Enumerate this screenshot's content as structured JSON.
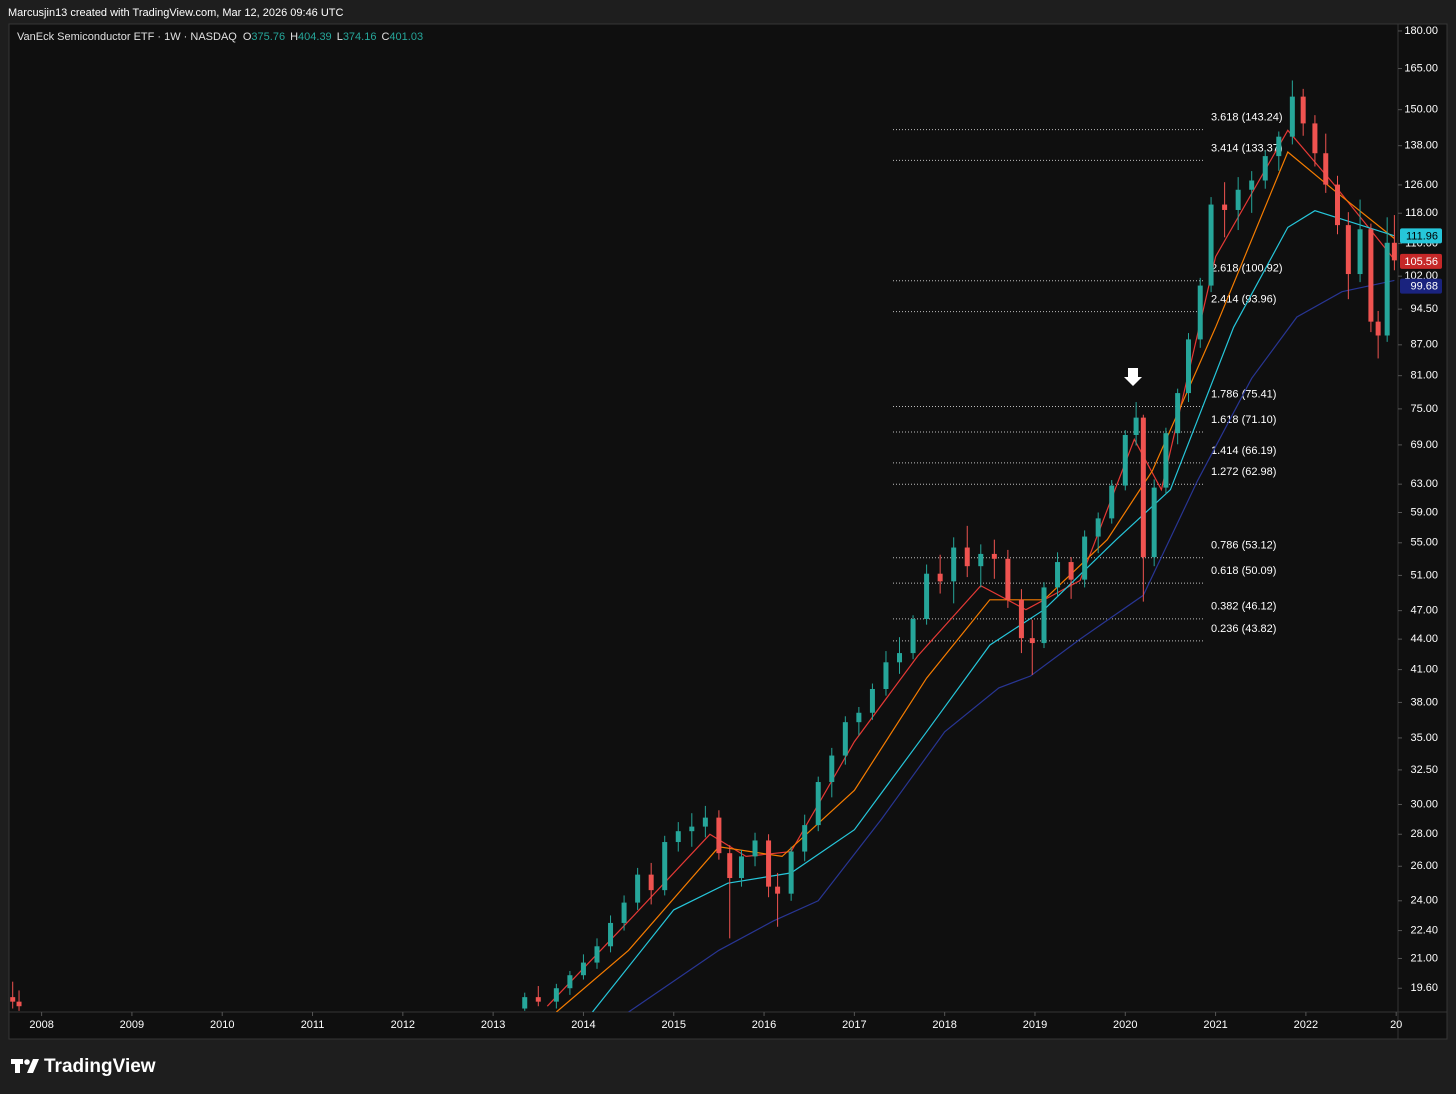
{
  "header": {
    "attribution": "Marcusjin13 created with TradingView.com, Mar 12, 2026 09:46 UTC"
  },
  "legend": {
    "symbol": "VanEck Semiconductor ETF · 1W · NASDAQ",
    "ohlc": [
      {
        "key": "O",
        "value": 375.76
      },
      {
        "key": "H",
        "value": 404.39
      },
      {
        "key": "L",
        "value": 374.16
      },
      {
        "key": "C",
        "value": 401.03
      }
    ]
  },
  "footer": {
    "brand": "TradingView"
  },
  "chart_data": {
    "type": "candlestick",
    "up_color": "#26a69a",
    "down_color": "#ef5350",
    "log_scale": true,
    "xlim": [
      2007.65,
      2023.02
    ],
    "ylim": [
      18.55,
      182.5
    ],
    "xticks": [
      2008,
      2009,
      2010,
      2011,
      2012,
      2013,
      2014,
      2015,
      2016,
      2017,
      2018,
      2019,
      2020,
      2021,
      2022,
      {
        "value": 2023,
        "label": "20"
      }
    ],
    "yticks": [
      {
        "value": 180,
        "label": "180.00"
      },
      {
        "value": 165,
        "label": "165.00"
      },
      {
        "value": 150,
        "label": "150.00"
      },
      {
        "value": 138,
        "label": "138.00"
      },
      {
        "value": 126,
        "label": "126.00"
      },
      {
        "value": 118,
        "label": "118.00"
      },
      {
        "value": 110,
        "label": "110.00"
      },
      {
        "value": 102,
        "label": "102.00"
      },
      {
        "value": 94.5,
        "label": "94.50"
      },
      {
        "value": 87,
        "label": "87.00"
      },
      {
        "value": 81,
        "label": "81.00"
      },
      {
        "value": 75,
        "label": "75.00"
      },
      {
        "value": 69,
        "label": "69.00"
      },
      {
        "value": 63,
        "label": "63.00"
      },
      {
        "value": 59,
        "label": "59.00"
      },
      {
        "value": 55,
        "label": "55.00"
      },
      {
        "value": 51,
        "label": "51.00"
      },
      {
        "value": 47,
        "label": "47.00"
      },
      {
        "value": 44,
        "label": "44.00"
      },
      {
        "value": 41,
        "label": "41.00"
      },
      {
        "value": 38,
        "label": "38.00"
      },
      {
        "value": 35,
        "label": "35.00"
      },
      {
        "value": 32.5,
        "label": "32.50"
      },
      {
        "value": 30,
        "label": "30.00"
      },
      {
        "value": 28,
        "label": "28.00"
      },
      {
        "value": 26,
        "label": "26.00"
      },
      {
        "value": 24,
        "label": "24.00"
      },
      {
        "value": 22.4,
        "label": "22.40"
      },
      {
        "value": 21,
        "label": "21.00"
      },
      {
        "value": 19.6,
        "label": "19.60"
      }
    ],
    "x": [
      2007.68,
      2007.75,
      2013.35,
      2013.5,
      2013.7,
      2013.85,
      2014.0,
      2014.15,
      2014.3,
      2014.45,
      2014.6,
      2014.75,
      2014.9,
      2015.05,
      2015.2,
      2015.35,
      2015.5,
      2015.62,
      2015.75,
      2015.9,
      2016.05,
      2016.15,
      2016.3,
      2016.45,
      2016.6,
      2016.75,
      2016.9,
      2017.05,
      2017.2,
      2017.35,
      2017.5,
      2017.65,
      2017.8,
      2017.95,
      2018.1,
      2018.25,
      2018.4,
      2018.55,
      2018.7,
      2018.85,
      2018.97,
      2019.1,
      2019.25,
      2019.4,
      2019.55,
      2019.7,
      2019.85,
      2020.0,
      2020.12,
      2020.2,
      2020.32,
      2020.45,
      2020.58,
      2020.7,
      2020.83,
      2020.95,
      2021.1,
      2021.25,
      2021.4,
      2021.55,
      2021.7,
      2021.85,
      2021.97,
      2022.1,
      2022.22,
      2022.35,
      2022.47,
      2022.6,
      2022.72,
      2022.8,
      2022.9,
      2022.98
    ],
    "open": [
      19.2,
      19.0,
      18.7,
      19.2,
      19.0,
      19.6,
      20.2,
      20.8,
      21.6,
      22.8,
      23.9,
      25.5,
      24.6,
      27.5,
      28.2,
      28.5,
      29.1,
      26.8,
      25.3,
      26.6,
      27.6,
      24.8,
      24.4,
      26.9,
      28.6,
      31.6,
      33.6,
      36.3,
      37.1,
      39.2,
      41.7,
      42.6,
      46.1,
      51.2,
      50.3,
      54.4,
      52.1,
      53.6,
      53.0,
      48.2,
      44.1,
      43.6,
      49.6,
      52.6,
      50.5,
      55.8,
      58.2,
      62.8,
      70.6,
      73.5,
      53.2,
      62.5,
      70.9,
      77.8,
      88.1,
      99.8,
      120.4,
      118.9,
      124.6,
      127.3,
      134.7,
      140.9,
      154.6,
      145.3,
      135.6,
      126.1,
      114.8,
      102.5,
      113.7,
      91.8,
      88.9,
      110.2
    ],
    "high": [
      19.9,
      19.5,
      19.4,
      19.7,
      19.8,
      20.4,
      21.2,
      22.0,
      23.2,
      24.3,
      25.9,
      26.2,
      27.9,
      28.8,
      29.4,
      29.9,
      29.6,
      27.3,
      27.0,
      28.1,
      28.0,
      25.6,
      27.2,
      29.3,
      32.0,
      34.2,
      36.8,
      37.6,
      39.7,
      42.8,
      44.2,
      46.5,
      52.3,
      53.5,
      55.7,
      57.2,
      54.8,
      55.4,
      54.1,
      49.4,
      46.0,
      50.2,
      53.8,
      53.2,
      56.6,
      59.0,
      63.6,
      71.4,
      76.2,
      74.0,
      63.7,
      71.8,
      78.6,
      89.4,
      101.6,
      122.5,
      126.8,
      128.3,
      130.1,
      136.5,
      142.6,
      160.5,
      157.4,
      148.1,
      141.9,
      128.7,
      118.3,
      121.8,
      115.2,
      94.1,
      116.9,
      117.5
    ],
    "low": [
      18.7,
      18.6,
      18.6,
      18.8,
      18.7,
      19.3,
      20.0,
      20.5,
      21.3,
      22.4,
      23.5,
      23.8,
      24.3,
      26.9,
      27.2,
      27.8,
      26.4,
      22.0,
      24.8,
      26.0,
      24.2,
      22.6,
      24.0,
      26.3,
      28.2,
      30.5,
      32.9,
      35.2,
      36.5,
      38.6,
      40.6,
      42.0,
      45.5,
      48.9,
      47.8,
      50.8,
      49.6,
      50.6,
      47.3,
      42.6,
      40.5,
      43.1,
      48.6,
      48.3,
      49.6,
      53.7,
      57.5,
      62.1,
      68.9,
      48.0,
      52.1,
      61.6,
      69.1,
      76.2,
      86.4,
      98.3,
      111.6,
      113.5,
      118.1,
      124.9,
      130.2,
      138.4,
      141.2,
      131.5,
      123.7,
      112.4,
      96.7,
      100.6,
      89.6,
      84.3,
      87.6,
      103.4
    ],
    "close": [
      19.0,
      18.8,
      19.2,
      19.0,
      19.6,
      20.2,
      20.8,
      21.6,
      22.8,
      23.9,
      25.5,
      24.6,
      27.5,
      28.2,
      28.5,
      29.1,
      26.8,
      25.3,
      26.6,
      27.6,
      24.8,
      24.4,
      26.9,
      28.6,
      31.6,
      33.6,
      36.3,
      37.1,
      39.2,
      41.7,
      42.6,
      46.1,
      51.2,
      50.3,
      54.4,
      52.1,
      53.6,
      53.0,
      48.2,
      44.1,
      43.6,
      49.6,
      52.6,
      50.5,
      55.8,
      58.2,
      62.8,
      70.6,
      73.5,
      53.2,
      62.5,
      70.9,
      77.8,
      88.1,
      99.8,
      120.4,
      118.9,
      124.6,
      127.3,
      134.7,
      140.9,
      154.6,
      145.3,
      135.6,
      126.1,
      114.8,
      102.5,
      113.7,
      91.8,
      88.9,
      110.2,
      105.8
    ],
    "ma_lines": [
      {
        "color": "#e53935",
        "x": [
          2013.6,
          2014.5,
          2015.4,
          2015.8,
          2016.3,
          2017.0,
          2017.7,
          2018.4,
          2018.9,
          2019.5,
          2020.1,
          2020.4,
          2021.0,
          2021.8,
          2022.3,
          2022.98
        ],
        "values": [
          18.8,
          22.9,
          28,
          26.6,
          26.9,
          34.7,
          42.3,
          49.8,
          47.1,
          50.4,
          69.9,
          62.2,
          106.7,
          143,
          126.5,
          106
        ]
      },
      {
        "color": "#f57c00",
        "x": [
          2013.7,
          2014.5,
          2015.5,
          2016.2,
          2017.0,
          2017.8,
          2018.5,
          2019.1,
          2019.8,
          2020.3,
          2021.0,
          2021.8,
          2022.3,
          2022.98
        ],
        "values": [
          18.55,
          21.4,
          27.2,
          26.6,
          31,
          40.2,
          48.2,
          48.2,
          55.4,
          65,
          90.6,
          136,
          124.7,
          111.3
        ]
      },
      {
        "color": "#26c6da",
        "x": [
          2014.1,
          2015.0,
          2015.6,
          2016.3,
          2017.0,
          2017.8,
          2018.5,
          2019.1,
          2019.9,
          2020.5,
          2021.2,
          2021.8,
          2022.1,
          2022.5,
          2022.98
        ],
        "values": [
          18.55,
          23.5,
          25,
          25.6,
          28.3,
          35.5,
          43.4,
          47.1,
          55.4,
          62.2,
          90.6,
          114.2,
          118.7,
          115.6,
          112
        ]
      },
      {
        "color": "#283593",
        "x": [
          2014.5,
          2015.5,
          2016.1,
          2016.6,
          2017.3,
          2018.0,
          2018.6,
          2018.95,
          2019.5,
          2020.2,
          2020.8,
          2021.4,
          2021.9,
          2022.4,
          2022.98
        ],
        "values": [
          18.55,
          21.4,
          22.9,
          24,
          29,
          35.5,
          39.3,
          40.4,
          44,
          48.7,
          63.5,
          80.5,
          92.8,
          98.4,
          101
        ]
      }
    ],
    "fib_levels": [
      {
        "label": "3.618 (143.24)",
        "value": 143.24
      },
      {
        "label": "3.414 (133.37)",
        "value": 133.37
      },
      {
        "label": "2.618 (100.92)",
        "value": 100.92
      },
      {
        "label": "2.414 (93.96)",
        "value": 93.96
      },
      {
        "label": "1.786 (75.41)",
        "value": 75.41
      },
      {
        "label": "1.618 (71.10)",
        "value": 71.1
      },
      {
        "label": "1.414 (66.19)",
        "value": 66.19
      },
      {
        "label": "1.272 (62.98)",
        "value": 62.98
      },
      {
        "label": "0.786 (53.12)",
        "value": 53.12
      },
      {
        "label": "0.618 (50.09)",
        "value": 50.09
      },
      {
        "label": "0.382 (46.12)",
        "value": 46.12
      },
      {
        "label": "0.236 (43.82)",
        "value": 43.82
      }
    ],
    "price_tags": [
      {
        "value": 111.96,
        "color": "#26c6da",
        "text_color": "#000000"
      },
      {
        "value": 105.56,
        "color": "#c62828",
        "text_color": "#ffffff"
      },
      {
        "value": 99.68,
        "color": "#1a237e",
        "text_color": "#ffffff"
      }
    ]
  }
}
